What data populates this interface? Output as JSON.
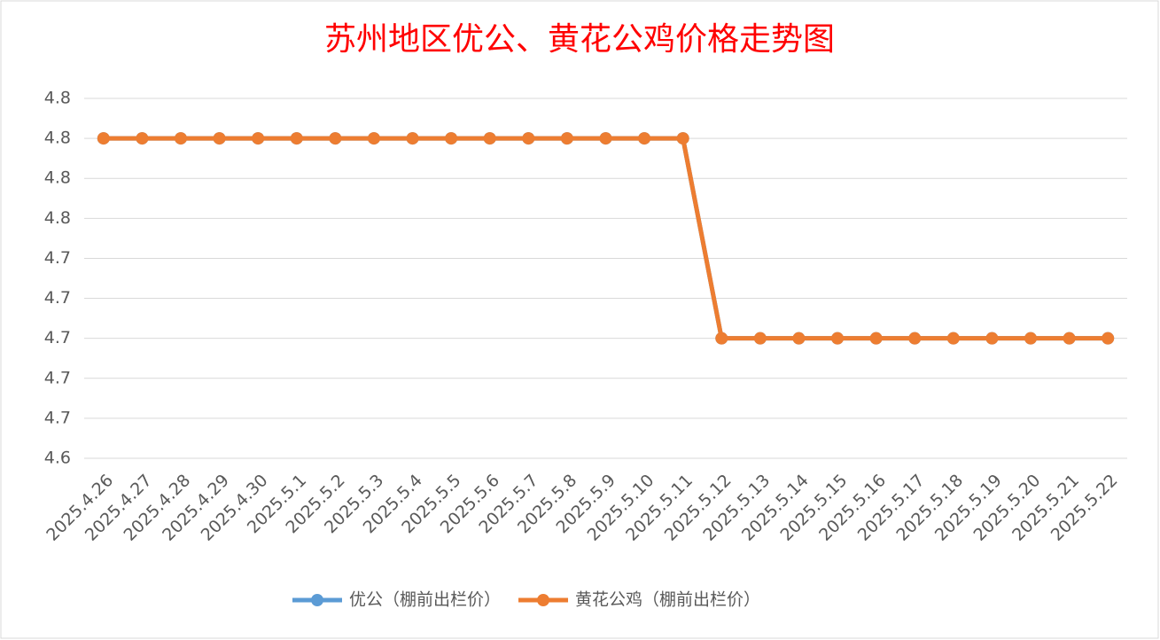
{
  "chart_data": {
    "type": "line",
    "title": "苏州地区优公、黄花公鸡价格走势图",
    "categories": [
      "2025.4.26",
      "2025.4.27",
      "2025.4.28",
      "2025.4.29",
      "2025.4.30",
      "2025.5.1",
      "2025.5.2",
      "2025.5.3",
      "2025.5.4",
      "2025.5.5",
      "2025.5.6",
      "2025.5.7",
      "2025.5.8",
      "2025.5.9",
      "2025.5.10",
      "2025.5.11",
      "2025.5.12",
      "2025.5.13",
      "2025.5.14",
      "2025.5.15",
      "2025.5.16",
      "2025.5.17",
      "2025.5.18",
      "2025.5.19",
      "2025.5.20",
      "2025.5.21",
      "2025.5.22"
    ],
    "series": [
      {
        "name": "优公（棚前出栏价）",
        "color": "#5b9bd5",
        "values": [
          4.8,
          4.8,
          4.8,
          4.8,
          4.8,
          4.8,
          4.8,
          4.8,
          4.8,
          4.8,
          4.8,
          4.8,
          4.8,
          4.8,
          4.8,
          4.8,
          4.7,
          4.7,
          4.7,
          4.7,
          4.7,
          4.7,
          4.7,
          4.7,
          4.7,
          4.7,
          4.7
        ]
      },
      {
        "name": "黄花公鸡（棚前出栏价）",
        "color": "#ed7d31",
        "values": [
          4.8,
          4.8,
          4.8,
          4.8,
          4.8,
          4.8,
          4.8,
          4.8,
          4.8,
          4.8,
          4.8,
          4.8,
          4.8,
          4.8,
          4.8,
          4.8,
          4.7,
          4.7,
          4.7,
          4.7,
          4.7,
          4.7,
          4.7,
          4.7,
          4.7,
          4.7,
          4.7
        ]
      }
    ],
    "ylim": [
      4.64,
      4.82
    ],
    "yticks": [
      {
        "value": 4.64,
        "label": "4.6"
      },
      {
        "value": 4.66,
        "label": "4.7"
      },
      {
        "value": 4.68,
        "label": "4.7"
      },
      {
        "value": 4.7,
        "label": "4.7"
      },
      {
        "value": 4.72,
        "label": "4.7"
      },
      {
        "value": 4.74,
        "label": "4.7"
      },
      {
        "value": 4.76,
        "label": "4.8"
      },
      {
        "value": 4.78,
        "label": "4.8"
      },
      {
        "value": 4.8,
        "label": "4.8"
      },
      {
        "value": 4.82,
        "label": "4.8"
      }
    ],
    "grid": true,
    "legend": "bottom"
  }
}
